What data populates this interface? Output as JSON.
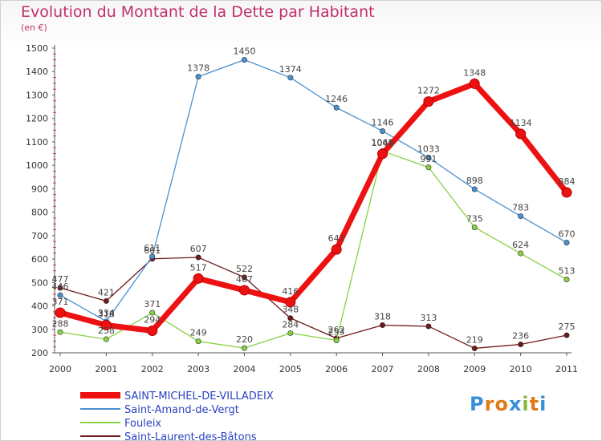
{
  "chart_data": {
    "type": "line",
    "title": "Evolution du Montant de la Dette par Habitant",
    "subtitle": "(en €)",
    "xlabel": "",
    "ylabel": "",
    "ylim": [
      200,
      1500
    ],
    "yticks": [
      200,
      300,
      400,
      500,
      600,
      700,
      800,
      900,
      1000,
      1100,
      1200,
      1300,
      1400,
      1500
    ],
    "categories": [
      "2000",
      "2001",
      "2002",
      "2003",
      "2004",
      "2005",
      "2006",
      "2007",
      "2008",
      "2009",
      "2010",
      "2011"
    ],
    "grid": false,
    "legend_position": "bottom-left",
    "series": [
      {
        "name": "Saint-Laurent-des-Bâtons",
        "color": "#6e1a1a",
        "values": [
          477,
          421,
          601,
          607,
          522,
          348,
          262,
          318,
          313,
          219,
          236,
          275
        ]
      },
      {
        "name": "Saint-Amand-de-Vergt",
        "color": "#4a90d0",
        "values": [
          446,
          334,
          611,
          1378,
          1450,
          1374,
          1246,
          1146,
          1033,
          898,
          783,
          670
        ]
      },
      {
        "name": "Fouleix",
        "color": "#8ad043",
        "values": [
          288,
          258,
          371,
          249,
          220,
          284,
          253,
          1061,
          991,
          735,
          624,
          513
        ]
      },
      {
        "name": "SAINT-MICHEL-DE-VILLADEIX",
        "color": "#ee1111",
        "values": [
          371,
          318,
          294,
          517,
          467,
          416,
          641,
          1049,
          1272,
          1348,
          1134,
          884
        ]
      }
    ]
  },
  "legend": {
    "items": [
      {
        "name": "SAINT-MICHEL-DE-VILLADEIX",
        "color": "#ee1111"
      },
      {
        "name": "Saint-Amand-de-Vergt",
        "color": "#4a90d0"
      },
      {
        "name": "Fouleix",
        "color": "#8ad043"
      },
      {
        "name": "Saint-Laurent-des-Bâtons",
        "color": "#6e1a1a"
      }
    ]
  },
  "logo": {
    "text": "Proxiti"
  }
}
